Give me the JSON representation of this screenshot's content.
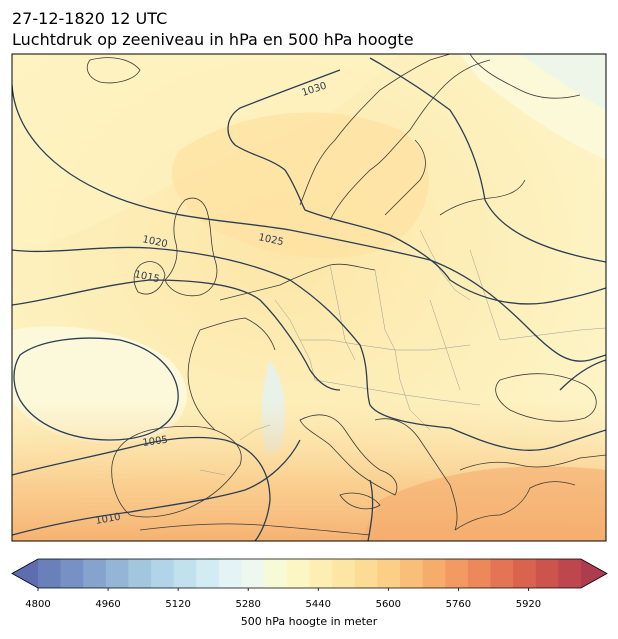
{
  "header": {
    "datetime": "27-12-1820 12 UTC",
    "subtitle": "Luchtdruk op zeeniveau in hPa en 500 hPa hoogte"
  },
  "map": {
    "region": "Europe",
    "isobar_labels": [
      "1030",
      "1025",
      "1020",
      "1015",
      "1005",
      "1010"
    ],
    "isobar_color": "#2b3e55",
    "coast_color": "#3a3a3a",
    "border_color": "#9a9a9a"
  },
  "colorbar": {
    "label": "500 hPa hoogte in meter",
    "ticks": [
      "4800",
      "4960",
      "5120",
      "5280",
      "5440",
      "5600",
      "5760",
      "5920"
    ],
    "min": 4800,
    "max": 6040,
    "step": 40,
    "colors": [
      "#5e6cb0",
      "#6a80bb",
      "#7891c4",
      "#86a3cd",
      "#94b5d6",
      "#a3c6df",
      "#b2d4e8",
      "#c2e1ef",
      "#d3ecf4",
      "#e3f3f6",
      "#eff8ee",
      "#f7fad6",
      "#fcf6c4",
      "#fdefb4",
      "#fde6a4",
      "#fcdb94",
      "#fbcf86",
      "#f9bf78",
      "#f6ad6c",
      "#f29a62",
      "#ec885a",
      "#e47554",
      "#d9634f",
      "#cc544c",
      "#bd474c",
      "#ad3c4e"
    ]
  }
}
